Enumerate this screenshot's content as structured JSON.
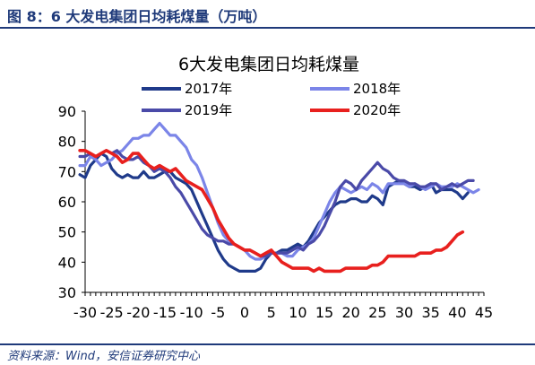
{
  "figure_title": "图 8：6 大发电集团日均耗煤量（万吨）",
  "source": "资料来源：Wind，安信证券研究中心",
  "chart_data": {
    "type": "line",
    "title": "6大发电集团日均耗煤量",
    "xlim": [
      -30,
      45
    ],
    "ylim": [
      30,
      90
    ],
    "x_ticks": [
      -30,
      -25,
      -20,
      -15,
      -10,
      -5,
      0,
      5,
      10,
      15,
      20,
      25,
      30,
      35,
      40,
      45
    ],
    "y_ticks": [
      30,
      40,
      50,
      60,
      70,
      80,
      90
    ],
    "legend": "top",
    "series": [
      {
        "name": "2017年",
        "color": "#1f3a8a",
        "points": [
          [
            -31,
            69
          ],
          [
            -30,
            68
          ],
          [
            -29,
            72
          ],
          [
            -28,
            74
          ],
          [
            -27,
            76
          ],
          [
            -26,
            75
          ],
          [
            -25,
            71
          ],
          [
            -24,
            69
          ],
          [
            -23,
            68
          ],
          [
            -22,
            69
          ],
          [
            -21,
            68
          ],
          [
            -20,
            68
          ],
          [
            -19,
            70
          ],
          [
            -18,
            68
          ],
          [
            -17,
            68
          ],
          [
            -16,
            69
          ],
          [
            -15,
            70
          ],
          [
            -14,
            70
          ],
          [
            -13,
            68
          ],
          [
            -12,
            67
          ],
          [
            -11,
            66
          ],
          [
            -10,
            64
          ],
          [
            -9,
            60
          ],
          [
            -8,
            56
          ],
          [
            -7,
            52
          ],
          [
            -6,
            48
          ],
          [
            -5,
            44
          ],
          [
            -4,
            41
          ],
          [
            -3,
            39
          ],
          [
            -2,
            38
          ],
          [
            -1,
            37
          ],
          [
            0,
            37
          ],
          [
            1,
            37
          ],
          [
            2,
            37
          ],
          [
            3,
            38
          ],
          [
            4,
            41
          ],
          [
            5,
            43
          ],
          [
            6,
            43
          ],
          [
            7,
            44
          ],
          [
            8,
            44
          ],
          [
            9,
            45
          ],
          [
            10,
            46
          ],
          [
            11,
            45
          ],
          [
            12,
            47
          ],
          [
            13,
            50
          ],
          [
            14,
            53
          ],
          [
            15,
            55
          ],
          [
            16,
            57
          ],
          [
            17,
            59
          ],
          [
            18,
            60
          ],
          [
            19,
            60
          ],
          [
            20,
            61
          ],
          [
            21,
            61
          ],
          [
            22,
            60
          ],
          [
            23,
            60
          ],
          [
            24,
            62
          ],
          [
            25,
            61
          ],
          [
            26,
            59
          ],
          [
            27,
            65
          ],
          [
            28,
            66
          ],
          [
            29,
            67
          ],
          [
            30,
            66
          ],
          [
            31,
            65
          ],
          [
            32,
            65
          ],
          [
            33,
            64
          ],
          [
            34,
            65
          ],
          [
            35,
            66
          ],
          [
            36,
            63
          ],
          [
            37,
            64
          ],
          [
            38,
            64
          ],
          [
            39,
            64
          ],
          [
            40,
            63
          ],
          [
            41,
            61
          ],
          [
            42,
            63
          ]
        ]
      },
      {
        "name": "2018年",
        "color": "#7b85e8",
        "points": [
          [
            -31,
            72
          ],
          [
            -30,
            72
          ],
          [
            -29,
            75
          ],
          [
            -28,
            74
          ],
          [
            -27,
            72
          ],
          [
            -26,
            73
          ],
          [
            -25,
            74
          ],
          [
            -24,
            76
          ],
          [
            -23,
            77
          ],
          [
            -22,
            79
          ],
          [
            -21,
            81
          ],
          [
            -20,
            81
          ],
          [
            -19,
            82
          ],
          [
            -18,
            82
          ],
          [
            -17,
            84
          ],
          [
            -16,
            86
          ],
          [
            -15,
            84
          ],
          [
            -14,
            82
          ],
          [
            -13,
            82
          ],
          [
            -12,
            80
          ],
          [
            -11,
            78
          ],
          [
            -10,
            74
          ],
          [
            -9,
            72
          ],
          [
            -8,
            68
          ],
          [
            -7,
            63
          ],
          [
            -6,
            58
          ],
          [
            -5,
            53
          ],
          [
            -4,
            49
          ],
          [
            -3,
            47
          ],
          [
            -2,
            46
          ],
          [
            -1,
            45
          ],
          [
            0,
            44
          ],
          [
            1,
            42
          ],
          [
            2,
            41
          ],
          [
            3,
            41
          ],
          [
            4,
            42
          ],
          [
            5,
            43
          ],
          [
            6,
            43
          ],
          [
            7,
            43
          ],
          [
            8,
            42
          ],
          [
            9,
            42
          ],
          [
            10,
            44
          ],
          [
            11,
            45
          ],
          [
            12,
            46
          ],
          [
            13,
            48
          ],
          [
            14,
            52
          ],
          [
            15,
            56
          ],
          [
            16,
            60
          ],
          [
            17,
            63
          ],
          [
            18,
            65
          ],
          [
            19,
            64
          ],
          [
            20,
            63
          ],
          [
            21,
            64
          ],
          [
            22,
            65
          ],
          [
            23,
            64
          ],
          [
            24,
            66
          ],
          [
            25,
            65
          ],
          [
            26,
            63
          ],
          [
            27,
            66
          ],
          [
            28,
            66
          ],
          [
            29,
            66
          ],
          [
            30,
            66
          ],
          [
            31,
            65
          ],
          [
            32,
            66
          ],
          [
            33,
            65
          ],
          [
            34,
            64
          ],
          [
            35,
            65
          ],
          [
            36,
            66
          ],
          [
            37,
            65
          ],
          [
            38,
            65
          ],
          [
            39,
            65
          ],
          [
            40,
            66
          ],
          [
            41,
            65
          ],
          [
            42,
            64
          ],
          [
            43,
            63
          ],
          [
            44,
            64
          ]
        ]
      },
      {
        "name": "2019年",
        "color": "#4a4aa8",
        "points": [
          [
            -31,
            75
          ],
          [
            -30,
            75
          ],
          [
            -29,
            76
          ],
          [
            -28,
            75
          ],
          [
            -27,
            76
          ],
          [
            -26,
            77
          ],
          [
            -25,
            76
          ],
          [
            -24,
            77
          ],
          [
            -23,
            75
          ],
          [
            -22,
            74
          ],
          [
            -21,
            74
          ],
          [
            -20,
            75
          ],
          [
            -19,
            73
          ],
          [
            -18,
            72
          ],
          [
            -17,
            70
          ],
          [
            -16,
            71
          ],
          [
            -15,
            70
          ],
          [
            -14,
            68
          ],
          [
            -13,
            65
          ],
          [
            -12,
            63
          ],
          [
            -11,
            60
          ],
          [
            -10,
            57
          ],
          [
            -9,
            54
          ],
          [
            -8,
            51
          ],
          [
            -7,
            49
          ],
          [
            -6,
            48
          ],
          [
            -5,
            47
          ],
          [
            -4,
            47
          ],
          [
            -3,
            46
          ],
          [
            -2,
            46
          ],
          [
            -1,
            45
          ],
          [
            0,
            44
          ],
          [
            1,
            44
          ],
          [
            2,
            43
          ],
          [
            3,
            42
          ],
          [
            4,
            42
          ],
          [
            5,
            43
          ],
          [
            6,
            43
          ],
          [
            7,
            43
          ],
          [
            8,
            43
          ],
          [
            9,
            44
          ],
          [
            10,
            45
          ],
          [
            11,
            44
          ],
          [
            12,
            46
          ],
          [
            13,
            47
          ],
          [
            14,
            49
          ],
          [
            15,
            52
          ],
          [
            16,
            56
          ],
          [
            17,
            60
          ],
          [
            18,
            65
          ],
          [
            19,
            67
          ],
          [
            20,
            66
          ],
          [
            21,
            64
          ],
          [
            22,
            67
          ],
          [
            23,
            69
          ],
          [
            24,
            71
          ],
          [
            25,
            73
          ],
          [
            26,
            71
          ],
          [
            27,
            70
          ],
          [
            28,
            68
          ],
          [
            29,
            67
          ],
          [
            30,
            67
          ],
          [
            31,
            66
          ],
          [
            32,
            66
          ],
          [
            33,
            65
          ],
          [
            34,
            65
          ],
          [
            35,
            66
          ],
          [
            36,
            66
          ],
          [
            37,
            64
          ],
          [
            38,
            65
          ],
          [
            39,
            66
          ],
          [
            40,
            65
          ],
          [
            41,
            66
          ],
          [
            42,
            67
          ],
          [
            43,
            67
          ]
        ]
      },
      {
        "name": "2020年",
        "color": "#e8201e",
        "points": [
          [
            -31,
            77
          ],
          [
            -30,
            77
          ],
          [
            -29,
            76
          ],
          [
            -28,
            75
          ],
          [
            -27,
            76
          ],
          [
            -26,
            77
          ],
          [
            -25,
            76
          ],
          [
            -24,
            75
          ],
          [
            -23,
            73
          ],
          [
            -22,
            74
          ],
          [
            -21,
            76
          ],
          [
            -20,
            76
          ],
          [
            -19,
            74
          ],
          [
            -18,
            72
          ],
          [
            -17,
            71
          ],
          [
            -16,
            72
          ],
          [
            -15,
            71
          ],
          [
            -14,
            70
          ],
          [
            -13,
            71
          ],
          [
            -12,
            69
          ],
          [
            -11,
            67
          ],
          [
            -10,
            66
          ],
          [
            -9,
            65
          ],
          [
            -8,
            64
          ],
          [
            -7,
            61
          ],
          [
            -6,
            58
          ],
          [
            -5,
            54
          ],
          [
            -4,
            51
          ],
          [
            -3,
            48
          ],
          [
            -2,
            46
          ],
          [
            -1,
            45
          ],
          [
            0,
            44
          ],
          [
            1,
            44
          ],
          [
            2,
            43
          ],
          [
            3,
            42
          ],
          [
            4,
            43
          ],
          [
            5,
            44
          ],
          [
            6,
            42
          ],
          [
            7,
            40
          ],
          [
            8,
            39
          ],
          [
            9,
            38
          ],
          [
            10,
            38
          ],
          [
            11,
            38
          ],
          [
            12,
            38
          ],
          [
            13,
            37
          ],
          [
            14,
            38
          ],
          [
            15,
            37
          ],
          [
            16,
            37
          ],
          [
            17,
            37
          ],
          [
            18,
            37
          ],
          [
            19,
            38
          ],
          [
            20,
            38
          ],
          [
            21,
            38
          ],
          [
            22,
            38
          ],
          [
            23,
            38
          ],
          [
            24,
            39
          ],
          [
            25,
            39
          ],
          [
            26,
            40
          ],
          [
            27,
            42
          ],
          [
            28,
            42
          ],
          [
            29,
            42
          ],
          [
            30,
            42
          ],
          [
            31,
            42
          ],
          [
            32,
            42
          ],
          [
            33,
            43
          ],
          [
            34,
            43
          ],
          [
            35,
            43
          ],
          [
            36,
            44
          ],
          [
            37,
            44
          ],
          [
            38,
            45
          ],
          [
            39,
            47
          ],
          [
            40,
            49
          ],
          [
            41,
            50
          ]
        ]
      }
    ]
  }
}
